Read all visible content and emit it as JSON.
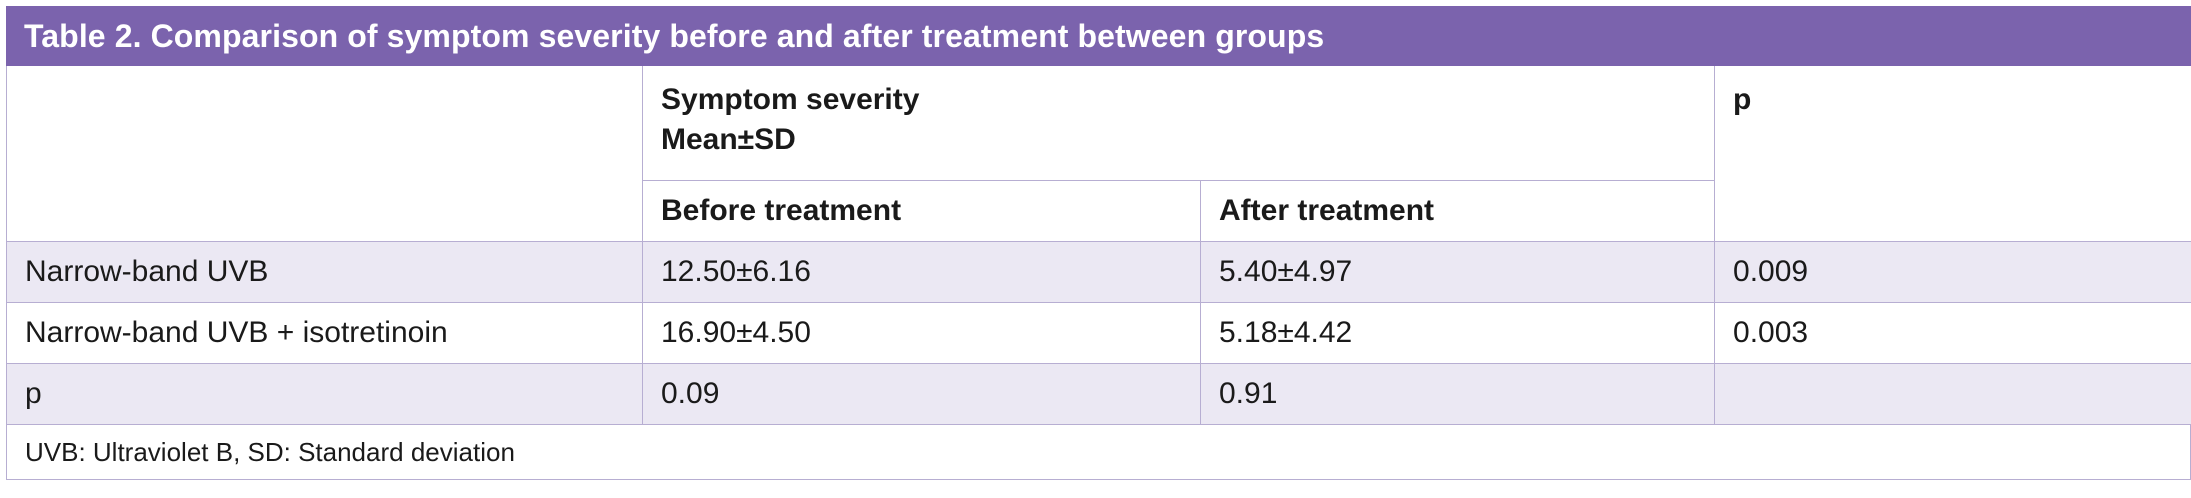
{
  "table": {
    "title": "Table 2. Comparison of symptom severity before and after treatment between groups",
    "header": {
      "group_line1": "Symptom severity",
      "group_line2": "Mean±SD",
      "p": "p",
      "before": "Before treatment",
      "after": "After treatment"
    },
    "rows": [
      {
        "label": "Narrow-band UVB",
        "before": "12.50±6.16",
        "after": "5.40±4.97",
        "p": "0.009"
      },
      {
        "label": "Narrow-band UVB + isotretinoin",
        "before": "16.90±4.50",
        "after": "5.18±4.42",
        "p": "0.003"
      },
      {
        "label": "p",
        "before": "0.09",
        "after": "0.91",
        "p": ""
      }
    ],
    "footnote": "UVB: Ultraviolet B, SD: Standard deviation"
  },
  "colors": {
    "title_bg": "#7b63ad",
    "row_shade": "#ebe8f3",
    "border": "#b7aed2"
  }
}
